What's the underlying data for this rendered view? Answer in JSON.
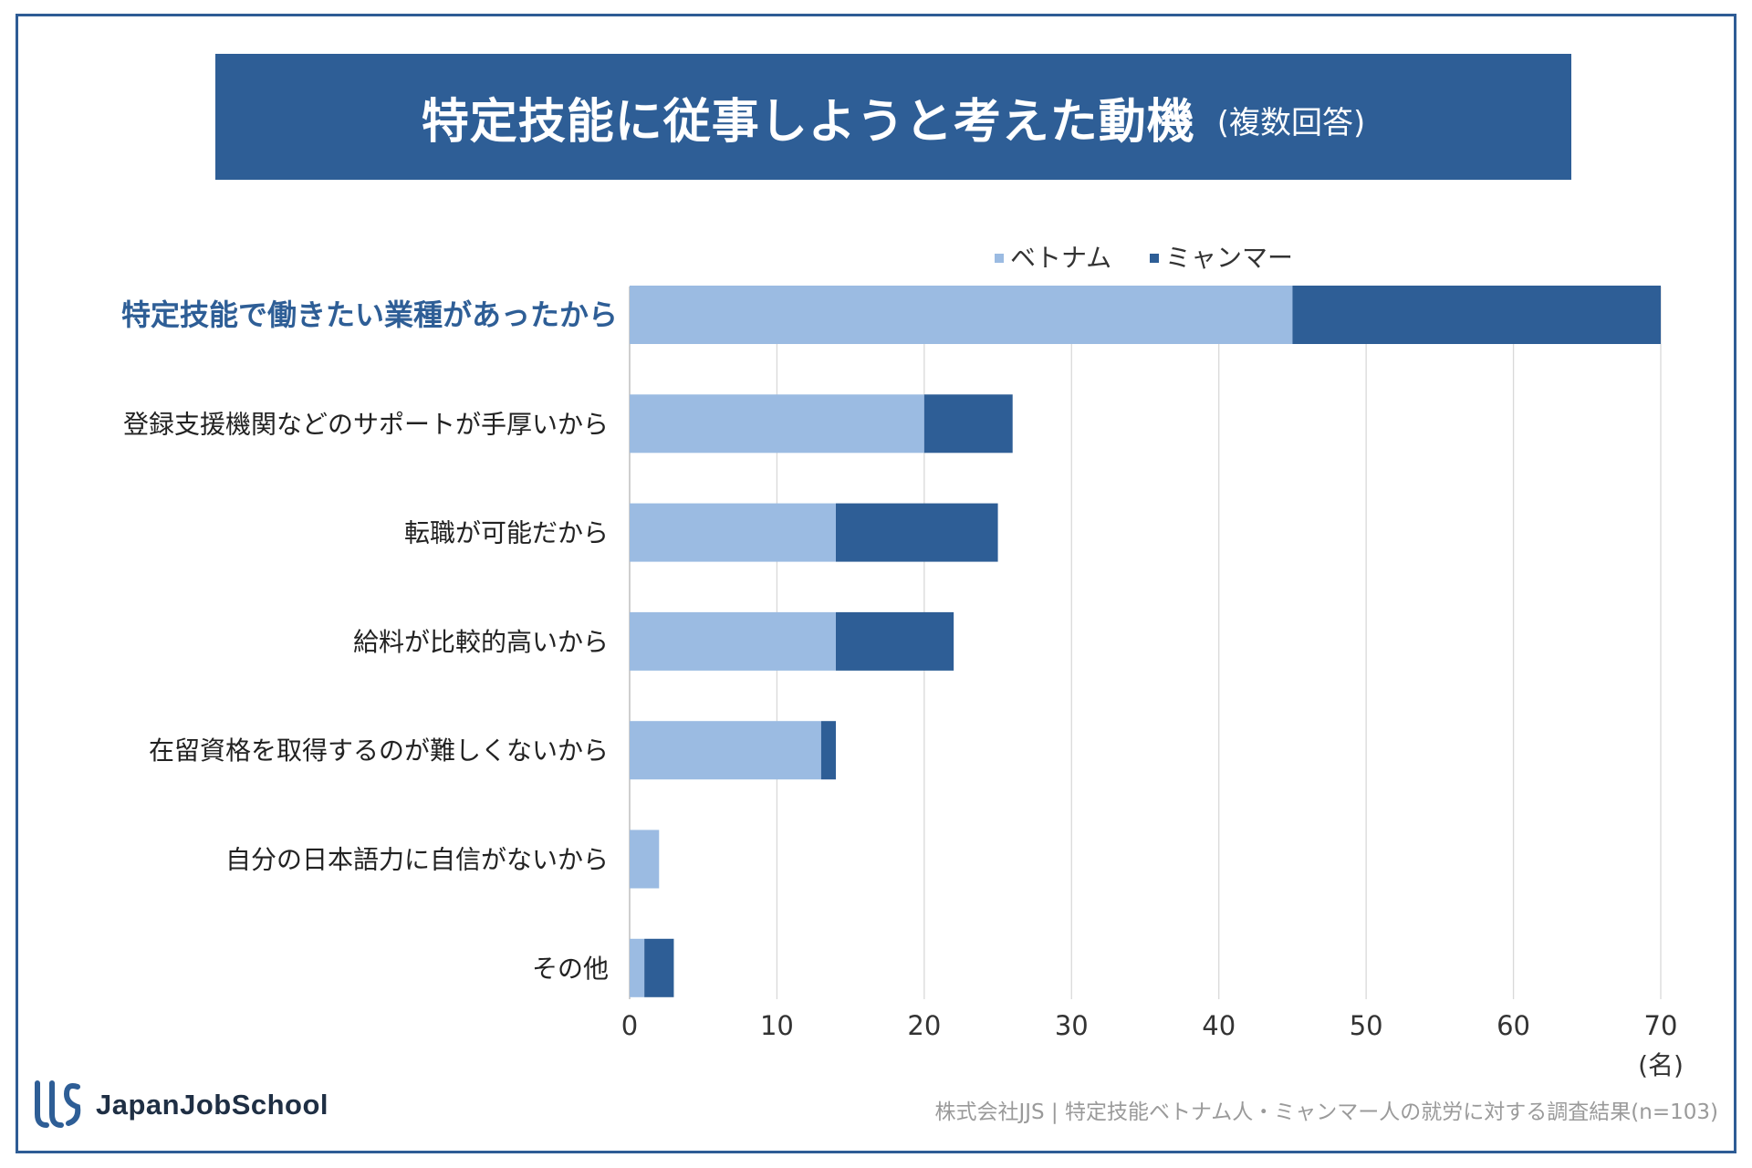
{
  "title": {
    "main": "特定技能に従事しようと考えた動機",
    "sub": "(複数回答)"
  },
  "colors": {
    "vietnam": "#9bbbe2",
    "myanmar": "#2e5e96",
    "accent": "#2e5e96"
  },
  "chart_data": {
    "type": "bar",
    "orientation": "horizontal",
    "stacked": true,
    "categories": [
      "特定技能で働きたい業種があったから",
      "登録支援機関などのサポートが手厚いから",
      "転職が可能だから",
      "給料が比較的高いから",
      "在留資格を取得するのが難しくないから",
      "自分の日本語力に自信がないから",
      "その他"
    ],
    "highlight_category": "特定技能で働きたい業種があったから",
    "series": [
      {
        "name": "ベトナム",
        "color": "#9bbbe2",
        "values": [
          45,
          20,
          14,
          14,
          13,
          2,
          1
        ]
      },
      {
        "name": "ミャンマー",
        "color": "#2e5e96",
        "values": [
          25,
          6,
          11,
          8,
          1,
          0,
          2
        ]
      }
    ],
    "xlim": [
      0,
      70
    ],
    "xticks": [
      "0",
      "10",
      "20",
      "30",
      "40",
      "50",
      "60",
      "70"
    ],
    "xticks_values": [
      0,
      10,
      20,
      30,
      40,
      50,
      60,
      70
    ],
    "unit_label": "(名)",
    "grid": true,
    "legend_position": "top-right"
  },
  "logo": {
    "text": "JapanJobSchool"
  },
  "footer": "株式会社JJS | 特定技能ベトナム人・ミャンマー人の就労に対する調査結果(n=103)"
}
